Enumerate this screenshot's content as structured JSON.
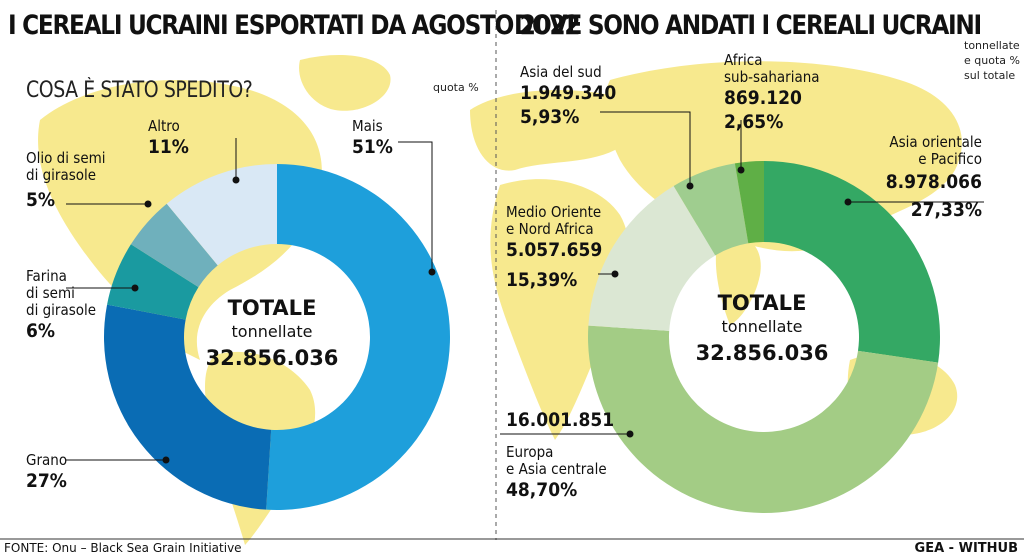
{
  "left": {
    "title": "I CEREALI UCRAINI ESPORTATI DA AGOSTO 2022",
    "subtitle": "COSA È STATO SPEDITO?",
    "note": "quota %",
    "center": {
      "heading": "TOTALE",
      "unit": "tonnellate",
      "total": "32.856.036"
    }
  },
  "right": {
    "title": "DOVE SONO ANDATI I CEREALI UCRAINI",
    "note": [
      "tonnellate",
      "e quota %",
      "sul totale"
    ],
    "center": {
      "heading": "TOTALE",
      "unit": "tonnellate",
      "total": "32.856.036"
    }
  },
  "footer": {
    "source": "FONTE: Onu – Black Sea Grain Initiative",
    "credit": "GEA - WITHUB"
  },
  "chart_data": [
    {
      "type": "pie",
      "title": "COSA È STATO SPEDITO?",
      "unit": "quota %",
      "slices": [
        {
          "label": "Mais",
          "value": 51,
          "display": "51%",
          "color": "#1e9fdb"
        },
        {
          "label": "Grano",
          "value": 27,
          "display": "27%",
          "color": "#0a6cb4"
        },
        {
          "label": [
            "Farina",
            "di semi",
            "di girasole"
          ],
          "value": 6,
          "display": "6%",
          "color": "#1a9aa0"
        },
        {
          "label": [
            "Olio di semi",
            "di girasole"
          ],
          "value": 5,
          "display": "5%",
          "color": "#6fb0bc"
        },
        {
          "label": "Altro",
          "value": 11,
          "display": "11%",
          "color": "#d9e8f5"
        }
      ]
    },
    {
      "type": "pie",
      "title": "DOVE SONO ANDATI I CEREALI UCRAINI",
      "unit": "tonnellate",
      "slices": [
        {
          "label": [
            "Asia orientale",
            "e Pacifico"
          ],
          "value": 8978066,
          "display": "8.978.066",
          "share": "27,33%",
          "color": "#34a864"
        },
        {
          "label": [
            "Europa",
            "e Asia centrale"
          ],
          "value": 16001851,
          "display": "16.001.851",
          "share": "48,70%",
          "color": "#a3cc85"
        },
        {
          "label": [
            "Medio Oriente",
            "e Nord Africa"
          ],
          "value": 5057659,
          "display": "5.057.659",
          "share": "15,39%",
          "color": "#dbe7d3"
        },
        {
          "label": "Asia del sud",
          "value": 1949340,
          "display": "1.949.340",
          "share": "5,93%",
          "color": "#9fcd8f"
        },
        {
          "label": [
            "Africa",
            "sub-sahariana"
          ],
          "value": 869120,
          "display": "869.120",
          "share": "2,65%",
          "color": "#5faf46"
        }
      ]
    }
  ]
}
